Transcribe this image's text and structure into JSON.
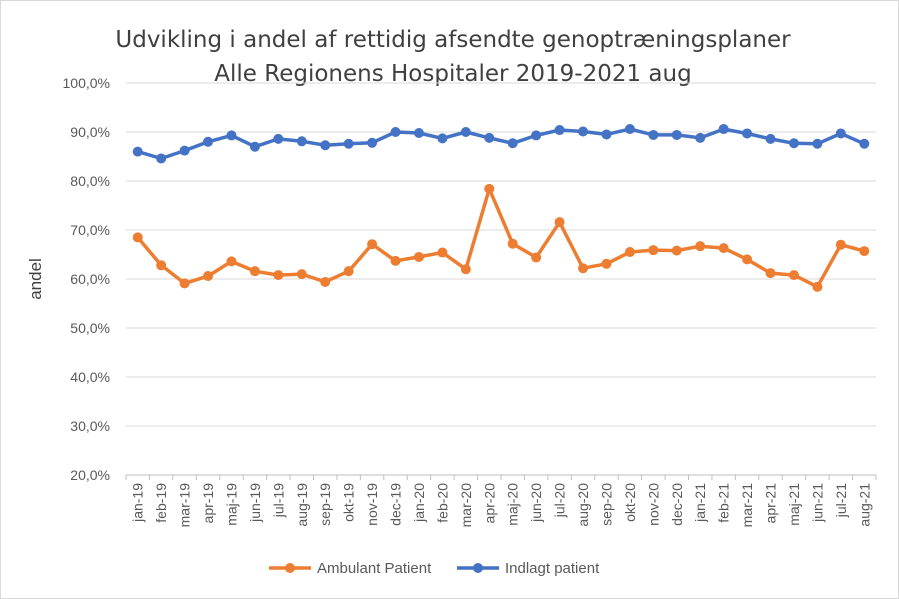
{
  "chart_data": {
    "type": "line",
    "title": "Udvikling i andel af rettidig afsendte genoptræningsplaner",
    "subtitle": "Alle Regionens Hospitaler 2019-2021 aug",
    "xlabel": "",
    "ylabel": "andel",
    "ylim": [
      20,
      100
    ],
    "y_ticks": [
      "20,0%",
      "30,0%",
      "40,0%",
      "50,0%",
      "60,0%",
      "70,0%",
      "80,0%",
      "90,0%",
      "100,0%"
    ],
    "grid": "horizontal",
    "legend_position": "bottom",
    "categories": [
      "jan-19",
      "feb-19",
      "mar-19",
      "apr-19",
      "maj-19",
      "jun-19",
      "jul-19",
      "aug-19",
      "sep-19",
      "okt-19",
      "nov-19",
      "dec-19",
      "jan-20",
      "feb-20",
      "mar-20",
      "apr-20",
      "maj-20",
      "jun-20",
      "jul-20",
      "aug-20",
      "sep-20",
      "okt-20",
      "nov-20",
      "dec-20",
      "jan-21",
      "feb-21",
      "mar-21",
      "apr-21",
      "maj-21",
      "jun-21",
      "jul-21",
      "aug-21"
    ],
    "series": [
      {
        "name": "Ambulant Patient",
        "color": "#ED7D31",
        "values": [
          68.5,
          62.8,
          59.1,
          60.6,
          63.6,
          61.6,
          60.8,
          61.0,
          59.4,
          61.6,
          67.1,
          63.7,
          64.5,
          65.4,
          62.0,
          78.4,
          67.2,
          64.4,
          71.6,
          62.2,
          63.1,
          65.5,
          65.9,
          65.8,
          66.7,
          66.3,
          64.0,
          61.2,
          60.8,
          58.4,
          67.0,
          65.7
        ]
      },
      {
        "name": "Indlagt patient",
        "color": "#4472C4",
        "values": [
          86.0,
          84.6,
          86.2,
          88.0,
          89.3,
          87.0,
          88.6,
          88.1,
          87.3,
          87.6,
          87.8,
          90.0,
          89.8,
          88.7,
          90.0,
          88.8,
          87.7,
          89.3,
          90.4,
          90.1,
          89.5,
          90.6,
          89.4,
          89.4,
          88.8,
          90.6,
          89.7,
          88.6,
          87.7,
          87.6,
          89.7,
          87.6
        ]
      }
    ]
  }
}
